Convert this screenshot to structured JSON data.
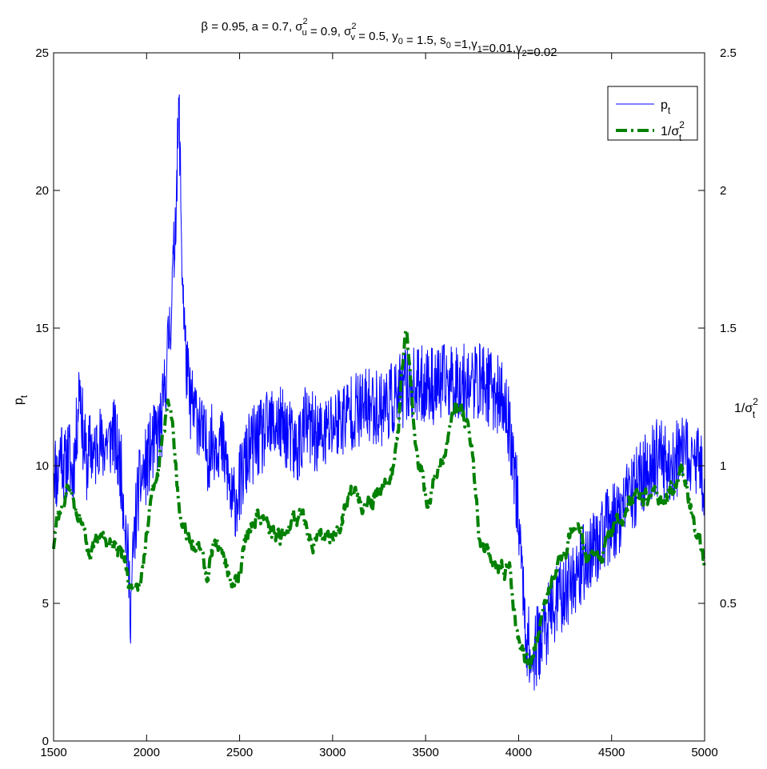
{
  "chart_data": {
    "type": "line",
    "title": {
      "parts": [
        {
          "t": "β = 0.95, a = 0.7, σ"
        },
        {
          "t": "u",
          "sub": true,
          "sup": "2"
        },
        {
          "t": " = 0.9, σ"
        },
        {
          "t": "v",
          "sub": true,
          "sup": "2"
        },
        {
          "t": " = 0.5, y"
        },
        {
          "t": "0",
          "sub": true
        },
        {
          "t": " = 1.5, s"
        },
        {
          "t": "0",
          "sub": true
        },
        {
          "t": " =1,γ"
        },
        {
          "t": "1",
          "sub": true
        },
        {
          "t": "=0.01,γ"
        },
        {
          "t": "2",
          "sub": true
        },
        {
          "t": "=0.02"
        }
      ]
    },
    "x_axis": {
      "min": 1500,
      "max": 5000,
      "ticks": [
        1500,
        2000,
        2500,
        3000,
        3500,
        4000,
        4500,
        5000
      ]
    },
    "y_left": {
      "label_main": "p",
      "label_sub": "t",
      "min": 0,
      "max": 25,
      "ticks": [
        0,
        5,
        10,
        15,
        20,
        25
      ]
    },
    "y_right": {
      "label_main": "1/σ",
      "label_sub": "t",
      "label_sup": "2",
      "min": 0,
      "max": 2.5,
      "ticks": [
        0.5,
        1,
        1.5,
        2,
        2.5
      ],
      "tick_text": [
        "0.5",
        "1",
        "1.5",
        "2",
        "2.5"
      ]
    },
    "legend": {
      "placement": "top-right"
    },
    "series": [
      {
        "name_main": "p",
        "name_sub": "t",
        "axis": "left",
        "color": "#0000ff",
        "style": "solid",
        "noise": 0.9,
        "seed": 11,
        "anchors": [
          [
            1500,
            10.3
          ],
          [
            1520,
            9.5
          ],
          [
            1540,
            10.8
          ],
          [
            1560,
            9.8
          ],
          [
            1580,
            10.5
          ],
          [
            1600,
            9.6
          ],
          [
            1620,
            10.8
          ],
          [
            1640,
            13.2
          ],
          [
            1660,
            11.0
          ],
          [
            1680,
            10.0
          ],
          [
            1700,
            10.8
          ],
          [
            1720,
            10.2
          ],
          [
            1740,
            11.2
          ],
          [
            1760,
            10.5
          ],
          [
            1780,
            11.0
          ],
          [
            1800,
            10.8
          ],
          [
            1820,
            11.3
          ],
          [
            1840,
            10.5
          ],
          [
            1860,
            10.0
          ],
          [
            1880,
            8.5
          ],
          [
            1900,
            6.5
          ],
          [
            1915,
            4.8
          ],
          [
            1930,
            7.0
          ],
          [
            1950,
            8.8
          ],
          [
            1970,
            9.5
          ],
          [
            2000,
            10.0
          ],
          [
            2020,
            10.5
          ],
          [
            2050,
            11.0
          ],
          [
            2080,
            11.5
          ],
          [
            2100,
            13.0
          ],
          [
            2130,
            15.5
          ],
          [
            2150,
            18.0
          ],
          [
            2165,
            21.0
          ],
          [
            2175,
            23.0
          ],
          [
            2190,
            17.5
          ],
          [
            2210,
            14.0
          ],
          [
            2230,
            12.5
          ],
          [
            2250,
            12.0
          ],
          [
            2280,
            11.8
          ],
          [
            2300,
            11.0
          ],
          [
            2330,
            10.5
          ],
          [
            2350,
            10.8
          ],
          [
            2380,
            11.0
          ],
          [
            2400,
            10.8
          ],
          [
            2430,
            10.0
          ],
          [
            2460,
            8.5
          ],
          [
            2490,
            9.0
          ],
          [
            2520,
            9.8
          ],
          [
            2550,
            10.5
          ],
          [
            2580,
            10.8
          ],
          [
            2620,
            11.0
          ],
          [
            2650,
            11.3
          ],
          [
            2700,
            11.5
          ],
          [
            2750,
            11.3
          ],
          [
            2800,
            10.5
          ],
          [
            2830,
            11.0
          ],
          [
            2850,
            11.5
          ],
          [
            2900,
            11.2
          ],
          [
            2950,
            11.0
          ],
          [
            3000,
            11.5
          ],
          [
            3050,
            11.7
          ],
          [
            3100,
            12.0
          ],
          [
            3150,
            12.0
          ],
          [
            3200,
            12.2
          ],
          [
            3250,
            12.1
          ],
          [
            3300,
            12.3
          ],
          [
            3350,
            12.5
          ],
          [
            3400,
            13.0
          ],
          [
            3450,
            12.8
          ],
          [
            3500,
            13.0
          ],
          [
            3550,
            12.9
          ],
          [
            3600,
            13.0
          ],
          [
            3650,
            13.1
          ],
          [
            3700,
            13.0
          ],
          [
            3750,
            13.0
          ],
          [
            3800,
            13.1
          ],
          [
            3850,
            12.8
          ],
          [
            3900,
            12.5
          ],
          [
            3930,
            12.0
          ],
          [
            3960,
            11.0
          ],
          [
            3990,
            9.0
          ],
          [
            4010,
            7.0
          ],
          [
            4040,
            4.0
          ],
          [
            4070,
            2.8
          ],
          [
            4100,
            3.5
          ],
          [
            4150,
            4.2
          ],
          [
            4200,
            5.0
          ],
          [
            4250,
            5.5
          ],
          [
            4300,
            6.0
          ],
          [
            4350,
            6.5
          ],
          [
            4400,
            7.0
          ],
          [
            4450,
            7.5
          ],
          [
            4500,
            7.9
          ],
          [
            4550,
            8.3
          ],
          [
            4600,
            8.8
          ],
          [
            4650,
            9.5
          ],
          [
            4700,
            10.0
          ],
          [
            4750,
            10.3
          ],
          [
            4800,
            10.0
          ],
          [
            4850,
            10.2
          ],
          [
            4900,
            10.4
          ],
          [
            4950,
            10.2
          ],
          [
            5000,
            9.5
          ]
        ]
      },
      {
        "name_main": "1/σ",
        "name_sub": "t",
        "name_sup": "2",
        "axis": "right",
        "color": "#008000",
        "style": "dashdot",
        "noise": 0.02,
        "seed": 29,
        "anchors": [
          [
            1500,
            0.7
          ],
          [
            1520,
            0.8
          ],
          [
            1550,
            0.85
          ],
          [
            1580,
            0.92
          ],
          [
            1600,
            0.88
          ],
          [
            1630,
            0.82
          ],
          [
            1660,
            0.78
          ],
          [
            1700,
            0.68
          ],
          [
            1730,
            0.7
          ],
          [
            1760,
            0.72
          ],
          [
            1800,
            0.75
          ],
          [
            1830,
            0.7
          ],
          [
            1860,
            0.68
          ],
          [
            1880,
            0.65
          ],
          [
            1900,
            0.55
          ],
          [
            1915,
            0.5
          ],
          [
            1935,
            0.58
          ],
          [
            1960,
            0.62
          ],
          [
            1990,
            0.7
          ],
          [
            2020,
            0.85
          ],
          [
            2050,
            0.95
          ],
          [
            2080,
            1.05
          ],
          [
            2100,
            1.15
          ],
          [
            2120,
            1.22
          ],
          [
            2140,
            1.15
          ],
          [
            2160,
            0.95
          ],
          [
            2180,
            0.8
          ],
          [
            2200,
            0.75
          ],
          [
            2250,
            0.73
          ],
          [
            2300,
            0.65
          ],
          [
            2330,
            0.6
          ],
          [
            2350,
            0.68
          ],
          [
            2380,
            0.72
          ],
          [
            2410,
            0.7
          ],
          [
            2440,
            0.63
          ],
          [
            2470,
            0.55
          ],
          [
            2500,
            0.62
          ],
          [
            2530,
            0.72
          ],
          [
            2570,
            0.8
          ],
          [
            2600,
            0.84
          ],
          [
            2640,
            0.82
          ],
          [
            2680,
            0.75
          ],
          [
            2720,
            0.7
          ],
          [
            2760,
            0.78
          ],
          [
            2800,
            0.84
          ],
          [
            2830,
            0.85
          ],
          [
            2860,
            0.78
          ],
          [
            2900,
            0.72
          ],
          [
            2950,
            0.78
          ],
          [
            2990,
            0.75
          ],
          [
            3030,
            0.8
          ],
          [
            3060,
            0.87
          ],
          [
            3100,
            0.92
          ],
          [
            3150,
            0.88
          ],
          [
            3200,
            0.85
          ],
          [
            3250,
            0.9
          ],
          [
            3300,
            0.95
          ],
          [
            3330,
            1.02
          ],
          [
            3360,
            1.2
          ],
          [
            3380,
            1.4
          ],
          [
            3395,
            1.5
          ],
          [
            3420,
            1.3
          ],
          [
            3440,
            1.1
          ],
          [
            3460,
            1.0
          ],
          [
            3480,
            0.95
          ],
          [
            3500,
            0.9
          ],
          [
            3520,
            0.88
          ],
          [
            3550,
            0.95
          ],
          [
            3580,
            1.0
          ],
          [
            3600,
            1.05
          ],
          [
            3630,
            1.15
          ],
          [
            3660,
            1.2
          ],
          [
            3700,
            1.15
          ],
          [
            3730,
            1.1
          ],
          [
            3750,
            1.05
          ],
          [
            3770,
            0.9
          ],
          [
            3790,
            0.75
          ],
          [
            3830,
            0.72
          ],
          [
            3870,
            0.65
          ],
          [
            3900,
            0.63
          ],
          [
            3920,
            0.62
          ],
          [
            3950,
            0.65
          ],
          [
            3970,
            0.55
          ],
          [
            3990,
            0.42
          ],
          [
            4020,
            0.3
          ],
          [
            4050,
            0.27
          ],
          [
            4080,
            0.33
          ],
          [
            4110,
            0.42
          ],
          [
            4140,
            0.5
          ],
          [
            4170,
            0.55
          ],
          [
            4200,
            0.6
          ],
          [
            4230,
            0.68
          ],
          [
            4260,
            0.7
          ],
          [
            4290,
            0.78
          ],
          [
            4320,
            0.8
          ],
          [
            4350,
            0.72
          ],
          [
            4380,
            0.68
          ],
          [
            4420,
            0.65
          ],
          [
            4460,
            0.7
          ],
          [
            4500,
            0.75
          ],
          [
            4550,
            0.8
          ],
          [
            4600,
            0.85
          ],
          [
            4650,
            0.88
          ],
          [
            4700,
            0.9
          ],
          [
            4750,
            0.88
          ],
          [
            4800,
            0.85
          ],
          [
            4850,
            0.95
          ],
          [
            4880,
            0.98
          ],
          [
            4910,
            0.9
          ],
          [
            4940,
            0.8
          ],
          [
            4970,
            0.72
          ],
          [
            5000,
            0.65
          ]
        ]
      }
    ]
  }
}
